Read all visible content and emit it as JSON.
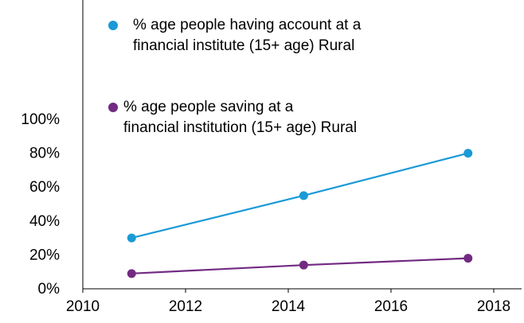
{
  "chart_data": {
    "type": "line",
    "x": [
      2010.95,
      2014.3,
      2017.5
    ],
    "series": [
      {
        "name": "% age people having account at a financial institute (15+ age) Rural",
        "color": "#1a9ad6",
        "values": [
          30,
          55,
          80
        ]
      },
      {
        "name": "% age people saving at a financial institution (15+ age) Rural",
        "color": "#722a82",
        "values": [
          9,
          14,
          18
        ]
      }
    ],
    "xlim": [
      2010,
      2018
    ],
    "xticks": [
      2010,
      2012,
      2014,
      2016,
      2018
    ],
    "ylim": [
      0,
      100
    ],
    "yticks": [
      {
        "value": 0,
        "label": "0%"
      },
      {
        "value": 20,
        "label": "20%"
      },
      {
        "value": 40,
        "label": "40%"
      },
      {
        "value": 60,
        "label": "60%"
      },
      {
        "value": 80,
        "label": "80%"
      },
      {
        "value": 100,
        "label": "100%"
      }
    ],
    "grid": false
  }
}
